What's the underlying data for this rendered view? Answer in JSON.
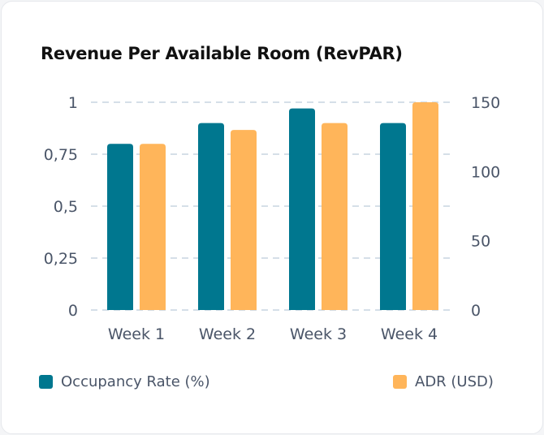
{
  "chart_data": {
    "type": "bar",
    "title": "Revenue Per Available Room (RevPAR)",
    "categories": [
      "Week 1",
      "Week 2",
      "Week 3",
      "Week 4"
    ],
    "series": [
      {
        "name": "Occupancy Rate (%)",
        "axis": "left",
        "color": "#00778f",
        "values": [
          0.8,
          0.9,
          0.97,
          0.9
        ]
      },
      {
        "name": "ADR (USD)",
        "axis": "right",
        "color": "#ffb55a",
        "values": [
          120,
          130,
          135,
          150
        ]
      }
    ],
    "left_axis": {
      "ylim": [
        0,
        1
      ],
      "ticks": [
        0,
        0.25,
        0.5,
        0.75,
        1
      ],
      "tick_labels": [
        "0",
        "0,25",
        "0,5",
        "0,75",
        "1"
      ]
    },
    "right_axis": {
      "ylim": [
        0,
        150
      ],
      "ticks": [
        0,
        50,
        100,
        150
      ],
      "tick_labels": [
        "0",
        "50",
        "100",
        "150"
      ]
    },
    "grid": true,
    "legend": "bottom"
  }
}
